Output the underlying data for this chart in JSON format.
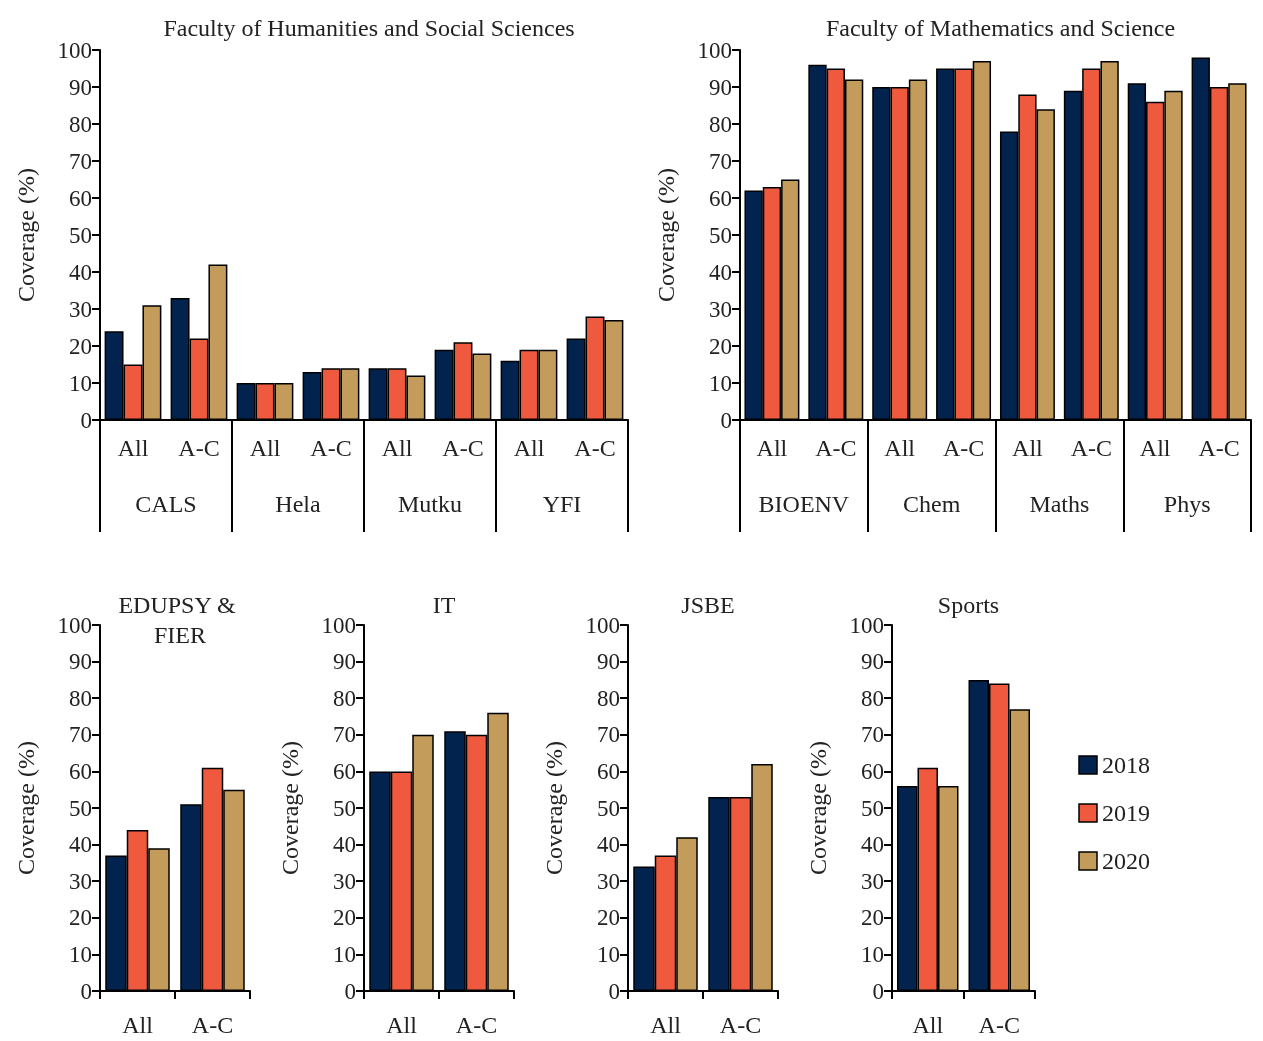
{
  "chart_data": [
    {
      "type": "bar",
      "title": "Faculty of Humanities and Social Sciences",
      "ylabel": "Coverage (%)",
      "categories": [
        "All",
        "A-C",
        "All",
        "A-C",
        "All",
        "A-C",
        "All",
        "A-C"
      ],
      "annotations": [
        "CALS",
        "Hela",
        "Mutku",
        "YFI"
      ],
      "ylim": [
        0,
        100
      ],
      "yticks": [
        0,
        10,
        20,
        30,
        40,
        50,
        60,
        70,
        80,
        90,
        100
      ],
      "grid": false,
      "legend": false,
      "series": [
        {
          "color": "#03234f",
          "values": [
            24,
            33,
            10,
            13,
            14,
            19,
            16,
            22
          ]
        },
        {
          "color": "#ef5a3f",
          "values": [
            15,
            22,
            10,
            14,
            14,
            21,
            19,
            28
          ]
        },
        {
          "color": "#c39b5b",
          "values": [
            31,
            42,
            10,
            14,
            12,
            18,
            19,
            27
          ]
        }
      ]
    },
    {
      "type": "bar",
      "title": "Faculty of Mathematics and Science",
      "ylabel": "Coverage (%)",
      "categories": [
        "All",
        "A-C",
        "All",
        "A-C",
        "All",
        "A-C",
        "All",
        "A-C"
      ],
      "annotations": [
        "BIOENV",
        "Chem",
        "Maths",
        "Phys"
      ],
      "ylim": [
        0,
        100
      ],
      "yticks": [
        0,
        10,
        20,
        30,
        40,
        50,
        60,
        70,
        80,
        90,
        100
      ],
      "grid": false,
      "legend": false,
      "series": [
        {
          "color": "#03234f",
          "values": [
            62,
            96,
            90,
            95,
            78,
            89,
            91,
            98
          ]
        },
        {
          "color": "#ef5a3f",
          "values": [
            63,
            95,
            90,
            95,
            88,
            95,
            86,
            90
          ]
        },
        {
          "color": "#c39b5b",
          "values": [
            65,
            92,
            92,
            97,
            84,
            97,
            89,
            91
          ]
        }
      ]
    },
    {
      "type": "bar",
      "title": "EDUPSY & FIER",
      "ylabel": "Coverage (%)",
      "categories": [
        "All",
        "A-C"
      ],
      "ylim": [
        0,
        100
      ],
      "yticks": [
        0,
        10,
        20,
        30,
        40,
        50,
        60,
        70,
        80,
        90,
        100
      ],
      "grid": false,
      "legend": false,
      "series": [
        {
          "color": "#03234f",
          "values": [
            37,
            51
          ]
        },
        {
          "color": "#ef5a3f",
          "values": [
            44,
            61
          ]
        },
        {
          "color": "#c39b5b",
          "values": [
            39,
            55
          ]
        }
      ]
    },
    {
      "type": "bar",
      "title": "IT",
      "ylabel": "Coverage (%)",
      "categories": [
        "All",
        "A-C"
      ],
      "ylim": [
        0,
        100
      ],
      "yticks": [
        0,
        10,
        20,
        30,
        40,
        50,
        60,
        70,
        80,
        90,
        100
      ],
      "grid": false,
      "legend": false,
      "series": [
        {
          "color": "#03234f",
          "values": [
            60,
            71
          ]
        },
        {
          "color": "#ef5a3f",
          "values": [
            60,
            70
          ]
        },
        {
          "color": "#c39b5b",
          "values": [
            70,
            76
          ]
        }
      ]
    },
    {
      "type": "bar",
      "title": "JSBE",
      "ylabel": "Coverage (%)",
      "categories": [
        "All",
        "A-C"
      ],
      "ylim": [
        0,
        100
      ],
      "yticks": [
        0,
        10,
        20,
        30,
        40,
        50,
        60,
        70,
        80,
        90,
        100
      ],
      "grid": false,
      "legend": false,
      "series": [
        {
          "color": "#03234f",
          "values": [
            34,
            53
          ]
        },
        {
          "color": "#ef5a3f",
          "values": [
            37,
            53
          ]
        },
        {
          "color": "#c39b5b",
          "values": [
            42,
            62
          ]
        }
      ]
    },
    {
      "type": "bar",
      "title": "Sports",
      "ylabel": "Coverage (%)",
      "categories": [
        "All",
        "A-C"
      ],
      "ylim": [
        0,
        100
      ],
      "yticks": [
        0,
        10,
        20,
        30,
        40,
        50,
        60,
        70,
        80,
        90,
        100
      ],
      "grid": false,
      "legend": "right",
      "series": [
        {
          "name": "2018",
          "color": "#03234f",
          "values": [
            56,
            85
          ]
        },
        {
          "name": "2019",
          "color": "#ef5a3f",
          "values": [
            61,
            84
          ]
        },
        {
          "name": "2020",
          "color": "#c39b5b",
          "values": [
            56,
            77
          ]
        }
      ]
    }
  ]
}
